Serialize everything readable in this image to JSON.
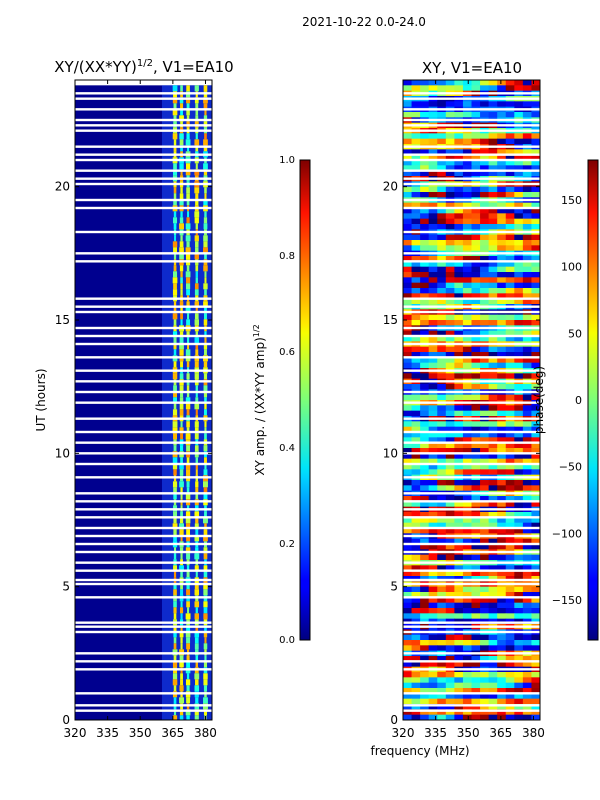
{
  "suptitle": "2021-10-22 0.0-24.0",
  "chart_data": [
    {
      "type": "heatmap",
      "title_main": "XY/(XX*YY)",
      "title_exp": "1/2",
      "title_tail": ", V1=EA10",
      "xlabel": "",
      "ylabel": "UT (hours)",
      "xlim": [
        320,
        383
      ],
      "ylim": [
        0,
        24
      ],
      "xticks": [
        320,
        335,
        350,
        365,
        380
      ],
      "yticks": [
        0,
        5,
        10,
        15,
        20
      ],
      "bright_channel_groups_mhz": [
        366,
        369,
        372,
        376,
        380
      ],
      "gap_rows_ut": [
        0.35,
        0.55,
        1.0,
        1.9,
        2.2,
        2.5,
        3.3,
        3.5,
        3.65,
        4.6,
        5.1,
        5.25,
        5.6,
        5.9,
        6.3,
        6.6,
        6.9,
        7.2,
        7.6,
        7.9,
        8.2,
        8.5,
        9.1,
        9.6,
        10.0,
        10.4,
        10.8,
        11.3,
        11.9,
        12.3,
        12.7,
        13.1,
        13.6,
        14.1,
        14.4,
        14.7,
        15.3,
        15.5,
        15.8,
        17.2,
        17.5,
        18.3,
        19.2,
        19.5,
        20.1,
        20.3,
        20.6,
        21.0,
        21.2,
        21.5,
        22.1,
        22.3,
        22.5,
        22.9,
        23.3,
        23.5
      ],
      "colorbar": {
        "min": 0.0,
        "max": 1.0,
        "ticks": [
          "0.0",
          "0.2",
          "0.4",
          "0.6",
          "0.8",
          "1.0"
        ],
        "label_main": "XY amp. / (XX*YY amp)",
        "label_exp": "1/2"
      }
    },
    {
      "type": "heatmap",
      "title": "XY, V1=EA10",
      "xlabel": "frequency (MHz)",
      "ylabel": "",
      "xlim": [
        320,
        383
      ],
      "ylim": [
        0,
        24
      ],
      "xticks": [
        320,
        335,
        350,
        365,
        380
      ],
      "yticks": [
        0,
        5,
        10,
        15,
        20
      ],
      "gap_rows_ut": [
        0.35,
        0.55,
        1.0,
        1.9,
        2.2,
        2.5,
        3.3,
        3.5,
        3.65,
        4.6,
        5.1,
        5.25,
        5.6,
        5.9,
        6.3,
        6.6,
        6.9,
        7.2,
        7.6,
        7.9,
        8.2,
        8.5,
        9.1,
        9.6,
        10.0,
        10.4,
        10.8,
        11.3,
        11.9,
        12.3,
        12.7,
        13.1,
        13.6,
        14.1,
        14.4,
        14.7,
        15.3,
        15.5,
        15.8,
        17.2,
        17.5,
        18.3,
        19.2,
        19.5,
        20.1,
        20.3,
        20.6,
        21.0,
        21.2,
        21.5,
        22.1,
        22.3,
        22.5,
        22.9,
        23.3,
        23.5
      ],
      "colorbar": {
        "min": -180,
        "max": 180,
        "ticks": [
          "150",
          "100",
          "50",
          "0",
          "−50",
          "−100",
          "−150"
        ],
        "tick_values": [
          150,
          100,
          50,
          0,
          -50,
          -100,
          -150
        ],
        "label": "phase(deg)"
      }
    }
  ]
}
